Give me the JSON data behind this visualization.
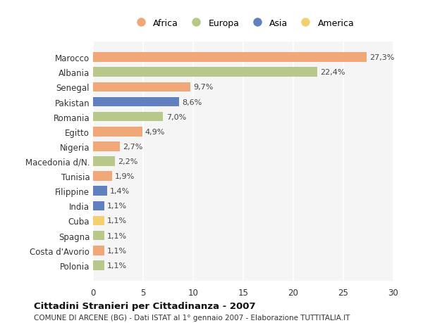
{
  "countries": [
    "Marocco",
    "Albania",
    "Senegal",
    "Pakistan",
    "Romania",
    "Egitto",
    "Nigeria",
    "Macedonia d/N.",
    "Tunisia",
    "Filippine",
    "India",
    "Cuba",
    "Spagna",
    "Costa d'Avorio",
    "Polonia"
  ],
  "values": [
    27.3,
    22.4,
    9.7,
    8.6,
    7.0,
    4.9,
    2.7,
    2.2,
    1.9,
    1.4,
    1.1,
    1.1,
    1.1,
    1.1,
    1.1
  ],
  "labels": [
    "27,3%",
    "22,4%",
    "9,7%",
    "8,6%",
    "7,0%",
    "4,9%",
    "2,7%",
    "2,2%",
    "1,9%",
    "1,4%",
    "1,1%",
    "1,1%",
    "1,1%",
    "1,1%",
    "1,1%"
  ],
  "continents": [
    "Africa",
    "Europa",
    "Africa",
    "Asia",
    "Europa",
    "Africa",
    "Africa",
    "Europa",
    "Africa",
    "Asia",
    "Asia",
    "America",
    "Europa",
    "Africa",
    "Europa"
  ],
  "colors": {
    "Africa": "#F0A878",
    "Europa": "#B8C88A",
    "Asia": "#6080C0",
    "America": "#F0D070"
  },
  "legend_order": [
    "Africa",
    "Europa",
    "Asia",
    "America"
  ],
  "title": "Cittadini Stranieri per Cittadinanza - 2007",
  "subtitle": "COMUNE DI ARCENE (BG) - Dati ISTAT al 1° gennaio 2007 - Elaborazione TUTTITALIA.IT",
  "xlim": [
    0,
    30
  ],
  "xticks": [
    0,
    5,
    10,
    15,
    20,
    25,
    30
  ],
  "background_color": "#ffffff",
  "plot_background": "#f5f5f5"
}
